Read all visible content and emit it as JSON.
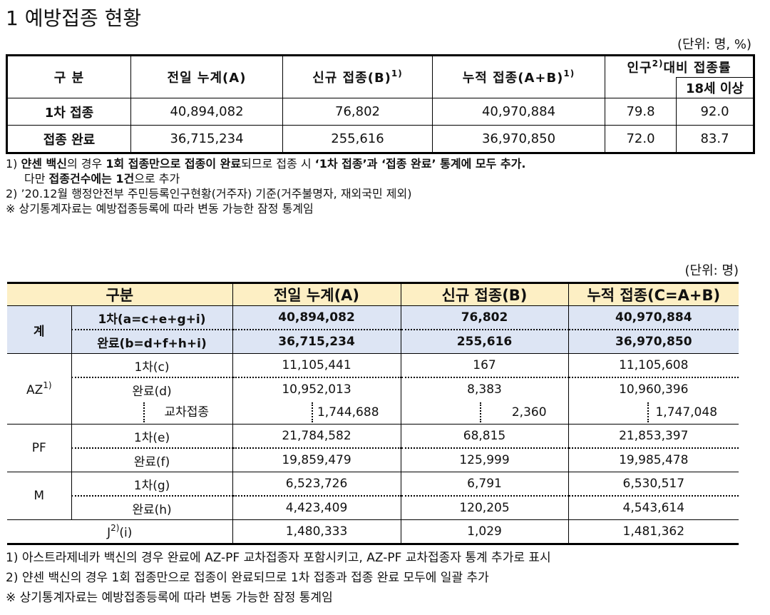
{
  "title": "1 예방접종 현황",
  "table1": {
    "unit": "(단위: 명, %)",
    "headers": [
      {
        "text": "구 분"
      },
      {
        "text": "전일 누계(A)"
      },
      {
        "text": "신규 접종(B)",
        "sup": "1)"
      },
      {
        "text": "누적 접종(A+B)",
        "sup": "1)"
      },
      {
        "text": "인구",
        "sup": "2)",
        "after": "대비 접종률"
      }
    ],
    "subheader": "18세 이상",
    "rows": [
      [
        "1차 접종",
        "40,894,082",
        "76,802",
        "40,970,884",
        "79.8",
        "92.0"
      ],
      [
        "접종 완료",
        "36,715,234",
        "255,616",
        "36,970,850",
        "72.0",
        "83.7"
      ]
    ]
  },
  "notes1": [
    [
      "1) ",
      "얀센 백신",
      "의 경우 ",
      "1회 접종만으로 접종이 완료",
      "되므로 접종 시 ",
      "‘1차 접종’과 ‘접종 완료’ 통계에 모두 추가."
    ],
    [
      "다만 ",
      "접종건수에는 1건",
      "으로 추가"
    ],
    [
      "2) ’20.12월 행정안전부 주민등록인구현황(거주자) 기준(거주불명자, 재외국민 제외)"
    ],
    [
      "※ 상기통계자료는 예방접종등록에 따라 변동 가능한 잠정 통계임"
    ]
  ],
  "table2": {
    "unit": "(단위: 명)",
    "headers": [
      "구분",
      "전일 누계(A)",
      "신규 접종(B)",
      "누적 접종(C=A+B)"
    ],
    "total": {
      "label": "계",
      "rows": [
        [
          "1차(a=c+e+g+i)",
          "40,894,082",
          "76,802",
          "40,970,884"
        ],
        [
          "완료(b=d+f+h+i)",
          "36,715,234",
          "255,616",
          "36,970,850"
        ]
      ]
    },
    "az": {
      "label": "AZ",
      "sup": "1)",
      "rows": [
        [
          "1차(c)",
          "11,105,441",
          "167",
          "11,105,608"
        ],
        [
          "완료(d)",
          "10,952,013",
          "8,383",
          "10,960,396"
        ]
      ],
      "cross": [
        "교차접종",
        "1,744,688",
        "2,360",
        "1,747,048"
      ]
    },
    "pf": {
      "label": "PF",
      "rows": [
        [
          "1차(e)",
          "21,784,582",
          "68,815",
          "21,853,397"
        ],
        [
          "완료(f)",
          "19,859,479",
          "125,999",
          "19,985,478"
        ]
      ]
    },
    "m": {
      "label": "M",
      "rows": [
        [
          "1차(g)",
          "6,523,726",
          "6,791",
          "6,530,517"
        ],
        [
          "완료(h)",
          "4,423,409",
          "120,205",
          "4,543,614"
        ]
      ]
    },
    "j": {
      "label": "J",
      "sup": "2)",
      "after": "(i)",
      "values": [
        "1,480,333",
        "1,029",
        "1,481,362"
      ]
    }
  },
  "notes2": [
    "1) 아스트라제네카 백신의 경우 완료에 AZ-PF 교차접종자 포함시키고, AZ-PF 교차접종자 통계 추가로 표시",
    "2) 얀센 백신의 경우 1회 접종만으로 접종이 완료되므로 1차 접종과 접종 완료 모두에 일괄 추가",
    "※ 상기통계자료는 예방접종등록에 따라 변동 가능한 잠정 통계임"
  ]
}
